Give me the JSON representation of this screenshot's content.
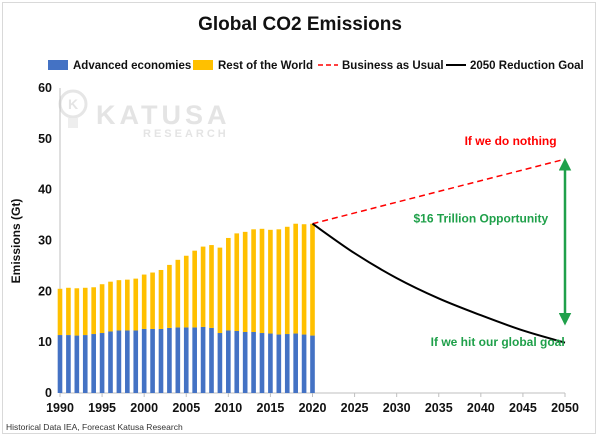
{
  "chart_data": {
    "type": "bar",
    "title": "Global CO2 Emissions",
    "ylabel": "Emissions (Gt)",
    "xlabel": "",
    "ylim": [
      0,
      60
    ],
    "yticks": [
      0,
      10,
      20,
      30,
      40,
      50,
      60
    ],
    "xlim": [
      1990,
      2050
    ],
    "xticks": [
      1990,
      1995,
      2000,
      2005,
      2010,
      2015,
      2020,
      2025,
      2030,
      2035,
      2040,
      2045,
      2050
    ],
    "grid": false,
    "legend_position": "top",
    "stacked": true,
    "categories": [
      1990,
      1991,
      1992,
      1993,
      1994,
      1995,
      1996,
      1997,
      1998,
      1999,
      2000,
      2001,
      2002,
      2003,
      2004,
      2005,
      2006,
      2007,
      2008,
      2009,
      2010,
      2011,
      2012,
      2013,
      2014,
      2015,
      2016,
      2017,
      2018,
      2019,
      2020
    ],
    "series": [
      {
        "name": "Advanced economies",
        "color": "#4472c4",
        "type": "bar",
        "values": [
          11.4,
          11.4,
          11.3,
          11.4,
          11.6,
          11.8,
          12.1,
          12.3,
          12.3,
          12.3,
          12.6,
          12.6,
          12.6,
          12.8,
          12.9,
          12.9,
          12.9,
          13.0,
          12.8,
          11.8,
          12.3,
          12.2,
          12.0,
          12.0,
          11.8,
          11.7,
          11.5,
          11.6,
          11.7,
          11.5,
          11.3
        ]
      },
      {
        "name": "Rest of the World",
        "color": "#ffc000",
        "type": "bar",
        "values": [
          9.1,
          9.3,
          9.3,
          9.3,
          9.2,
          9.6,
          9.8,
          9.9,
          10.0,
          10.2,
          10.7,
          11.1,
          11.6,
          12.4,
          13.3,
          14.1,
          15.1,
          15.8,
          16.3,
          16.8,
          18.2,
          19.2,
          19.7,
          20.2,
          20.5,
          20.4,
          20.7,
          21.1,
          21.6,
          21.7,
          22.0
        ]
      },
      {
        "name": "Business as Usual",
        "color": "#ff0000",
        "type": "line",
        "dashed": true,
        "x": [
          2020,
          2050
        ],
        "values": [
          33.3,
          46.0
        ]
      },
      {
        "name": "2050 Reduction Goal",
        "color": "#000000",
        "type": "line",
        "x": [
          2020,
          2025,
          2030,
          2035,
          2040,
          2045,
          2050
        ],
        "values": [
          33.3,
          27.5,
          22.6,
          18.6,
          15.3,
          12.3,
          9.9
        ]
      }
    ],
    "annotations": [
      {
        "text": "If we do nothing",
        "color": "#ff0000",
        "x": 2049,
        "y": 48.8
      },
      {
        "text": "$16 Trillion  Opportunity",
        "color": "#1fa04a",
        "x": 2040,
        "y": 33.5
      },
      {
        "text": "If we hit our global goal",
        "color": "#1fa04a",
        "x": 2042,
        "y": 9.2
      }
    ],
    "range_arrow": {
      "color": "#1fa04a",
      "x": 2050,
      "from": 45,
      "to": 14.5
    }
  },
  "watermark": {
    "brand": "KATUSA",
    "sub": "RESEARCH",
    "logo_letter": "K"
  },
  "source_note": "Historical Data IEA, Forecast Katusa Research"
}
